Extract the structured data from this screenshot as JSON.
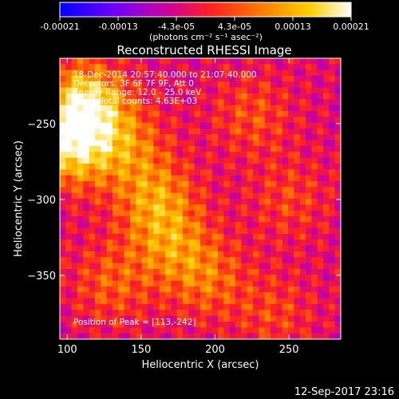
{
  "colorbar": {
    "ticks": [
      "-0.00021",
      "-0.00013",
      "-4.3e-05",
      "4.3e-05",
      "0.00013",
      "0.00021"
    ],
    "unit_label": "(photons cm⁻² s⁻¹ asec⁻²)"
  },
  "overlay": {
    "line1": "18-Dec-2014 20:57:40.000 to 21:07:40.000",
    "line2": "Detectors: 3F 6F 7F 9F, Att 0",
    "line3": "Energy Range: 12.0 - 25.0 keV",
    "line4": "Clean    Total counts: 4.63E+03",
    "peak": "Position of Peak = [113,-242]"
  },
  "footer_timestamp": "12-Sep-2017 23:16",
  "colors": {
    "background": "#000000",
    "text": "#ffffff",
    "colormap": [
      "#0000ff",
      "#6a00ff",
      "#c800a0",
      "#ff2020",
      "#ff8000",
      "#ffd000",
      "#ffffff"
    ]
  },
  "chart_data": {
    "type": "heatmap",
    "title": "Reconstructed RHESSI Image",
    "xlabel": "Heliocentric X (arcsec)",
    "ylabel": "Heliocentric Y (arcsec)",
    "xlim": [
      95,
      285
    ],
    "ylim": [
      -392,
      -207
    ],
    "xticks": [
      100,
      150,
      200,
      250
    ],
    "yticks": [
      -250,
      -300,
      -350
    ],
    "color_range": [
      -0.00021,
      0.00021
    ],
    "colormap": "blue-purple-red-orange-yellow-white",
    "peak_position": [
      113,
      -242
    ],
    "hotspots": [
      {
        "x": 112,
        "y": -238,
        "value": 0.00021
      },
      {
        "x": 102,
        "y": -265,
        "value": 0.00018
      },
      {
        "x": 160,
        "y": -300,
        "value": 0.00012
      },
      {
        "x": 140,
        "y": -265,
        "value": 0.0001
      },
      {
        "x": 170,
        "y": -330,
        "value": 0.0001
      },
      {
        "x": 195,
        "y": -352,
        "value": 9e-05
      },
      {
        "x": 130,
        "y": -355,
        "value": 8e-05
      },
      {
        "x": 225,
        "y": -245,
        "value": 7e-05
      },
      {
        "x": 250,
        "y": -300,
        "value": 6e-05
      },
      {
        "x": 240,
        "y": -375,
        "value": 6e-05
      }
    ]
  }
}
